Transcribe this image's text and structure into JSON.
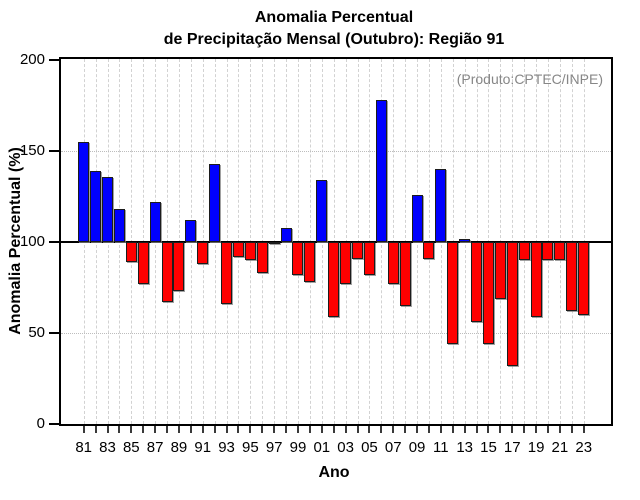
{
  "title": {
    "line1": "Anomalia Percentual",
    "line2": "de Precipitação Mensal (Outubro): Região 91"
  },
  "annotation": "(Produto:CPTEC/INPE)",
  "colors": {
    "bar_above_baseline": "#0000ff",
    "bar_below_baseline": "#ff0000",
    "annotation_text": "#878787"
  },
  "chart_data": {
    "type": "bar",
    "title": "Anomalia Percentual de Precipitação Mensal (Outubro): Região 91",
    "xlabel": "Ano",
    "ylabel": "Anomalia Percentual (%)",
    "ylim": [
      0,
      200
    ],
    "yticks": [
      0,
      50,
      100,
      150,
      200
    ],
    "gridlines_y": [
      50,
      100,
      150
    ],
    "baseline": 100,
    "grid": "dashed vertical per year, dotted horizontal at 50/100/150",
    "legend_position": "none",
    "xtick_labels": [
      "81",
      "83",
      "85",
      "87",
      "89",
      "91",
      "93",
      "95",
      "97",
      "99",
      "01",
      "03",
      "05",
      "07",
      "09",
      "11",
      "13",
      "15",
      "17",
      "19",
      "21",
      "23"
    ],
    "years": [
      1981,
      1982,
      1983,
      1984,
      1985,
      1986,
      1987,
      1988,
      1989,
      1990,
      1991,
      1992,
      1993,
      1994,
      1995,
      1996,
      1997,
      1998,
      1999,
      2000,
      2001,
      2002,
      2003,
      2004,
      2005,
      2006,
      2007,
      2008,
      2009,
      2010,
      2011,
      2012,
      2013,
      2014,
      2015,
      2016,
      2017,
      2018,
      2019,
      2020,
      2021,
      2022,
      2023
    ],
    "values": [
      155,
      139,
      136,
      118,
      89,
      77,
      122,
      67,
      73,
      112,
      88,
      143,
      66,
      92,
      90,
      83,
      99,
      108,
      82,
      78,
      134,
      59,
      77,
      91,
      82,
      178,
      77,
      65,
      126,
      91,
      140,
      44,
      102,
      56,
      44,
      69,
      32,
      90,
      59,
      90,
      90,
      62,
      60
    ]
  }
}
